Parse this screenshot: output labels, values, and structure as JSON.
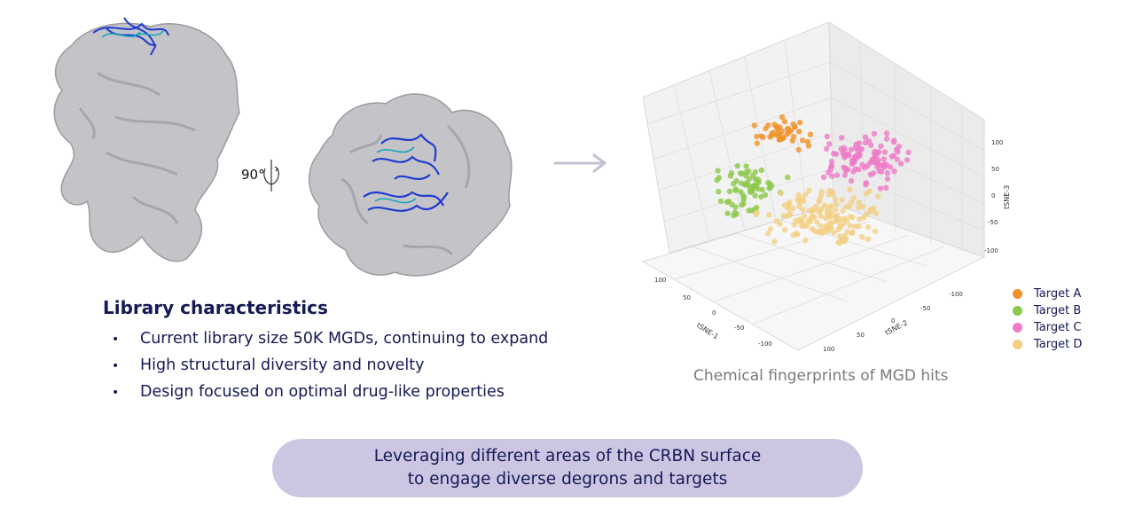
{
  "rotation": {
    "label": "90°"
  },
  "library": {
    "title": "Library characteristics",
    "bullets": [
      "Current library size 50K MGDs, continuing to expand",
      "High structural diversity and novelty",
      "Design focused on optimal drug-like properties"
    ]
  },
  "chart_caption": "Chemical fingerprints of MGD hits",
  "banner": {
    "line1": "Leveraging different areas of the CRBN surface",
    "line2": "to engage diverse degrons and targets"
  },
  "colors": {
    "target_a": "#f0922b",
    "target_b": "#8cc84b",
    "target_c": "#ef7ac8",
    "target_d": "#f2cf84",
    "banner": "#cdc6e3",
    "protein": "#c4c4c8",
    "ligand": "#1f3bd0"
  },
  "chart_data": {
    "type": "scatter3d",
    "axes": {
      "x": {
        "label": "tSNE-1",
        "ticks": [
          "100",
          "50",
          "0",
          "-50",
          "-100"
        ]
      },
      "y": {
        "label": "tSNE-2",
        "ticks": [
          "-100",
          "-50",
          "0",
          "50",
          "100"
        ]
      },
      "z": {
        "label": "tSNE-3",
        "ticks": [
          "-100",
          "-50",
          "0",
          "50",
          "100"
        ]
      }
    },
    "grid": true,
    "legend_position": "right",
    "series": [
      {
        "name": "Target A",
        "color": "#f0922b"
      },
      {
        "name": "Target B",
        "color": "#8cc84b"
      },
      {
        "name": "Target C",
        "color": "#ef7ac8"
      },
      {
        "name": "Target D",
        "color": "#f2cf84"
      }
    ]
  }
}
